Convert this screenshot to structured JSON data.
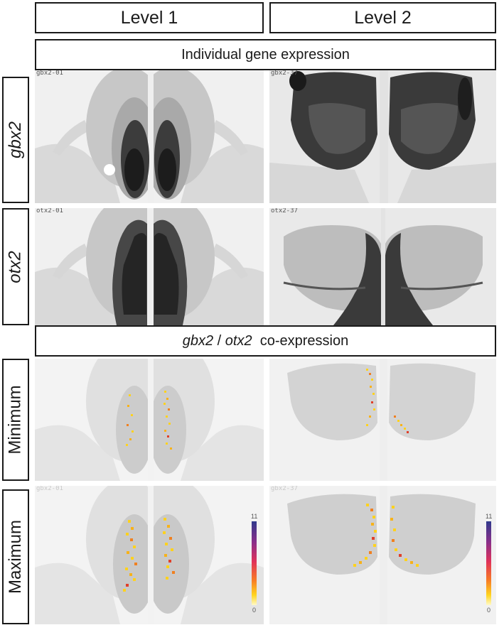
{
  "columns": [
    "Level 1",
    "Level 2"
  ],
  "sections": {
    "individual": "Individual gene expression",
    "coexpression": {
      "gene1": "gbx2",
      "sep": "/",
      "gene2": "otx2",
      "suffix": "co-expression"
    }
  },
  "rows": {
    "gbx2": "gbx2",
    "otx2": "otx2",
    "minimum": "Minimum",
    "maximum": "Maximum"
  },
  "panel_labels": {
    "gbx2_l1": "gbx2-01",
    "gbx2_l2": "gbx2-37",
    "otx2_l1": "otx2-01",
    "otx2_l2": "otx2-37",
    "max_l1": "gbx2-01",
    "max_l2": "gbx2-37"
  },
  "color_scale": {
    "max": "11",
    "min": "0"
  },
  "colors": {
    "scale": [
      "#313a8c",
      "#8a2f8a",
      "#e0325a",
      "#f77a26",
      "#ffd520",
      "#fff9c8"
    ],
    "hotspots": [
      "#ffd21e",
      "#f7b21a",
      "#f08020",
      "#e0402a"
    ]
  }
}
